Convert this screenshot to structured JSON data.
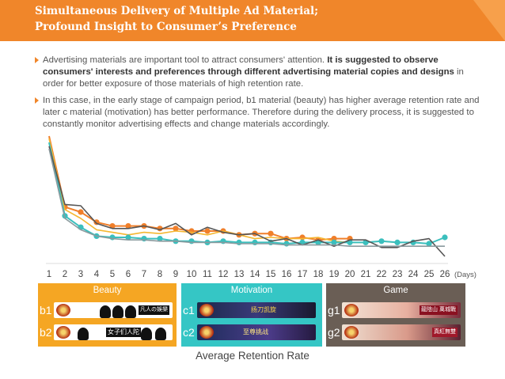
{
  "header": {
    "title": "Simultaneous Delivery of Multiple Ad Material;\nProfound Insight to Consumer’s Preference"
  },
  "bullets": [
    {
      "normal": "Advertising materials are important tool to attract consumers' attention. ",
      "bold": "It is suggested to observe consumers' interests and preferences through different advertising material copies and designs",
      "tail": " in order for better exposure of those materials of high retention rate."
    },
    {
      "normal": "In this case, in the early stage of campaign period, b1 material (beauty) has higher average retention rate and later c material (motivation) has better performance. Therefore during the delivery process, it is suggested to constantly monitor advertising effects and change materials accordingly.",
      "bold": "",
      "tail": ""
    }
  ],
  "legend": {
    "groups": [
      {
        "title": "Beauty",
        "color": "#f5a623",
        "items": [
          {
            "label": "b1",
            "text": "凡人の娛樂"
          },
          {
            "label": "b2",
            "text": "女子们人陀"
          }
        ]
      },
      {
        "title": "Motivation",
        "color": "#35c6c5",
        "items": [
          {
            "label": "c1",
            "text": "扬刀凯旋"
          },
          {
            "label": "c2",
            "text": "至尊挑战"
          }
        ]
      },
      {
        "title": "Game",
        "color": "#6a5e55",
        "items": [
          {
            "label": "g1",
            "text": "龍陰山 萬城戰"
          },
          {
            "label": "g2",
            "text": "真紅無雙"
          }
        ]
      }
    ]
  },
  "caption": "Average Retention Rate",
  "chart_data": {
    "type": "line",
    "x": [
      1,
      2,
      3,
      4,
      5,
      6,
      7,
      8,
      9,
      10,
      11,
      12,
      13,
      14,
      15,
      16,
      17,
      18,
      19,
      20,
      21,
      22,
      23,
      24,
      25,
      26
    ],
    "xlabel": "(Days)",
    "ylim": [
      0,
      100
    ],
    "grid": false,
    "series": [
      {
        "color": "#f07f2a",
        "marker": true,
        "values": [
          100,
          44,
          40,
          32,
          29,
          29,
          29,
          27,
          27,
          25,
          25,
          25,
          22,
          23,
          23,
          19,
          20,
          18,
          19,
          19,
          null,
          null,
          null,
          null,
          null,
          null
        ]
      },
      {
        "color": "#f5b731",
        "marker": false,
        "values": [
          98,
          42,
          35,
          26,
          24,
          22,
          24,
          23,
          25,
          24,
          22,
          25,
          22,
          19,
          20,
          19,
          19,
          20,
          17,
          16,
          16,
          17,
          16,
          null,
          null,
          null
        ]
      },
      {
        "color": "#3bbfbd",
        "marker": true,
        "values": [
          95,
          37,
          28,
          21,
          20,
          20,
          19,
          19,
          17,
          17,
          16,
          17,
          16,
          16,
          16,
          15,
          16,
          16,
          16,
          16,
          16,
          17,
          16,
          16,
          15,
          20
        ]
      },
      {
        "color": "#555555",
        "marker": false,
        "values": [
          92,
          46,
          45,
          31,
          27,
          27,
          29,
          26,
          31,
          22,
          28,
          24,
          22,
          23,
          17,
          19,
          14,
          18,
          13,
          18,
          18,
          12,
          12,
          17,
          19,
          5
        ]
      },
      {
        "color": "#8a9a9e",
        "marker": false,
        "values": [
          90,
          35,
          26,
          21,
          19,
          18,
          18,
          17,
          17,
          16,
          16,
          16,
          15,
          15,
          15,
          14,
          14,
          14,
          14,
          13,
          13,
          13,
          13,
          13,
          13,
          13
        ]
      }
    ]
  }
}
